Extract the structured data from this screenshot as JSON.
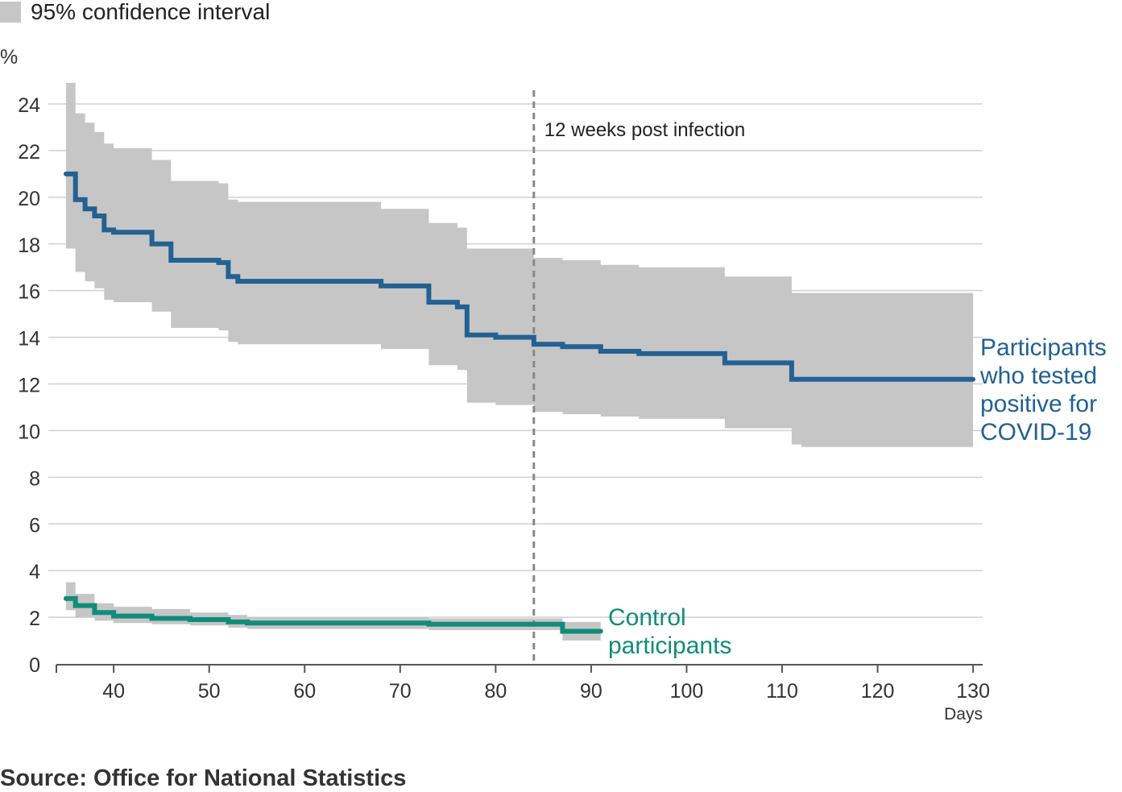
{
  "legend": {
    "ci_label": "95% confidence interval"
  },
  "source": "Source: Office for National Statistics",
  "colors": {
    "positive": "#236192",
    "control": "#118c7b",
    "ci": "#c6c6c6",
    "grid": "#d0d0d0",
    "axis": "#555555",
    "reference": "#888888"
  },
  "chart_data": {
    "type": "line",
    "title": "",
    "xlabel": "Days",
    "ylabel": "%",
    "xlim": [
      34,
      131
    ],
    "ylim": [
      0,
      24
    ],
    "xticks": [
      40,
      50,
      60,
      70,
      80,
      90,
      100,
      110,
      120,
      130
    ],
    "yticks": [
      0,
      2,
      4,
      6,
      8,
      10,
      12,
      14,
      16,
      18,
      20,
      22,
      24
    ],
    "grid": true,
    "reference_line": {
      "x": 84,
      "label": "12 weeks post infection"
    },
    "series": [
      {
        "name": "Participants who tested positive for COVID-19",
        "label_lines": [
          "Participants",
          "who tested",
          "positive for",
          "COVID-19"
        ],
        "color": "#236192",
        "step_start": [
          35,
          36,
          37,
          38,
          39,
          40,
          44,
          46,
          51,
          52,
          53,
          68,
          73,
          76,
          77,
          80,
          84,
          87,
          91,
          95,
          104,
          111,
          112
        ],
        "values": [
          21.0,
          19.9,
          19.5,
          19.2,
          18.6,
          18.5,
          18.0,
          17.3,
          17.2,
          16.6,
          16.4,
          16.2,
          15.5,
          15.3,
          14.1,
          14.0,
          13.7,
          13.6,
          13.4,
          13.3,
          12.9,
          12.2,
          12.2
        ],
        "x_end": 130,
        "ci_step_start": [
          35,
          36,
          37,
          38,
          39,
          40,
          44,
          46,
          51,
          52,
          53,
          68,
          73,
          76,
          77,
          80,
          84,
          87,
          91,
          95,
          104,
          111,
          112
        ],
        "ci_lower": [
          17.8,
          16.8,
          16.4,
          16.1,
          15.6,
          15.5,
          15.1,
          14.4,
          14.3,
          13.8,
          13.7,
          13.5,
          12.8,
          12.6,
          11.2,
          11.1,
          10.8,
          10.7,
          10.6,
          10.5,
          10.1,
          9.4,
          9.3
        ],
        "ci_upper": [
          24.9,
          23.6,
          23.2,
          22.8,
          22.3,
          22.1,
          21.6,
          20.7,
          20.6,
          19.9,
          19.8,
          19.5,
          18.9,
          18.7,
          17.8,
          17.8,
          17.4,
          17.3,
          17.1,
          17.0,
          16.6,
          15.9,
          15.9
        ],
        "ci_x_end": 130
      },
      {
        "name": "Control participants",
        "label_lines": [
          "Control",
          "participants"
        ],
        "color": "#118c7b",
        "step_start": [
          35,
          36,
          38,
          40,
          44,
          48,
          52,
          54,
          73,
          87
        ],
        "values": [
          2.8,
          2.5,
          2.2,
          2.05,
          1.95,
          1.9,
          1.8,
          1.75,
          1.7,
          1.4
        ],
        "x_end": 91,
        "ci_step_start": [
          35,
          36,
          38,
          40,
          44,
          48,
          52,
          54,
          73,
          87
        ],
        "ci_lower": [
          2.3,
          2.0,
          1.85,
          1.75,
          1.7,
          1.65,
          1.55,
          1.5,
          1.45,
          1.0
        ],
        "ci_upper": [
          3.5,
          3.0,
          2.6,
          2.45,
          2.35,
          2.2,
          2.1,
          2.0,
          1.95,
          1.8
        ],
        "ci_x_end": 91
      }
    ]
  }
}
